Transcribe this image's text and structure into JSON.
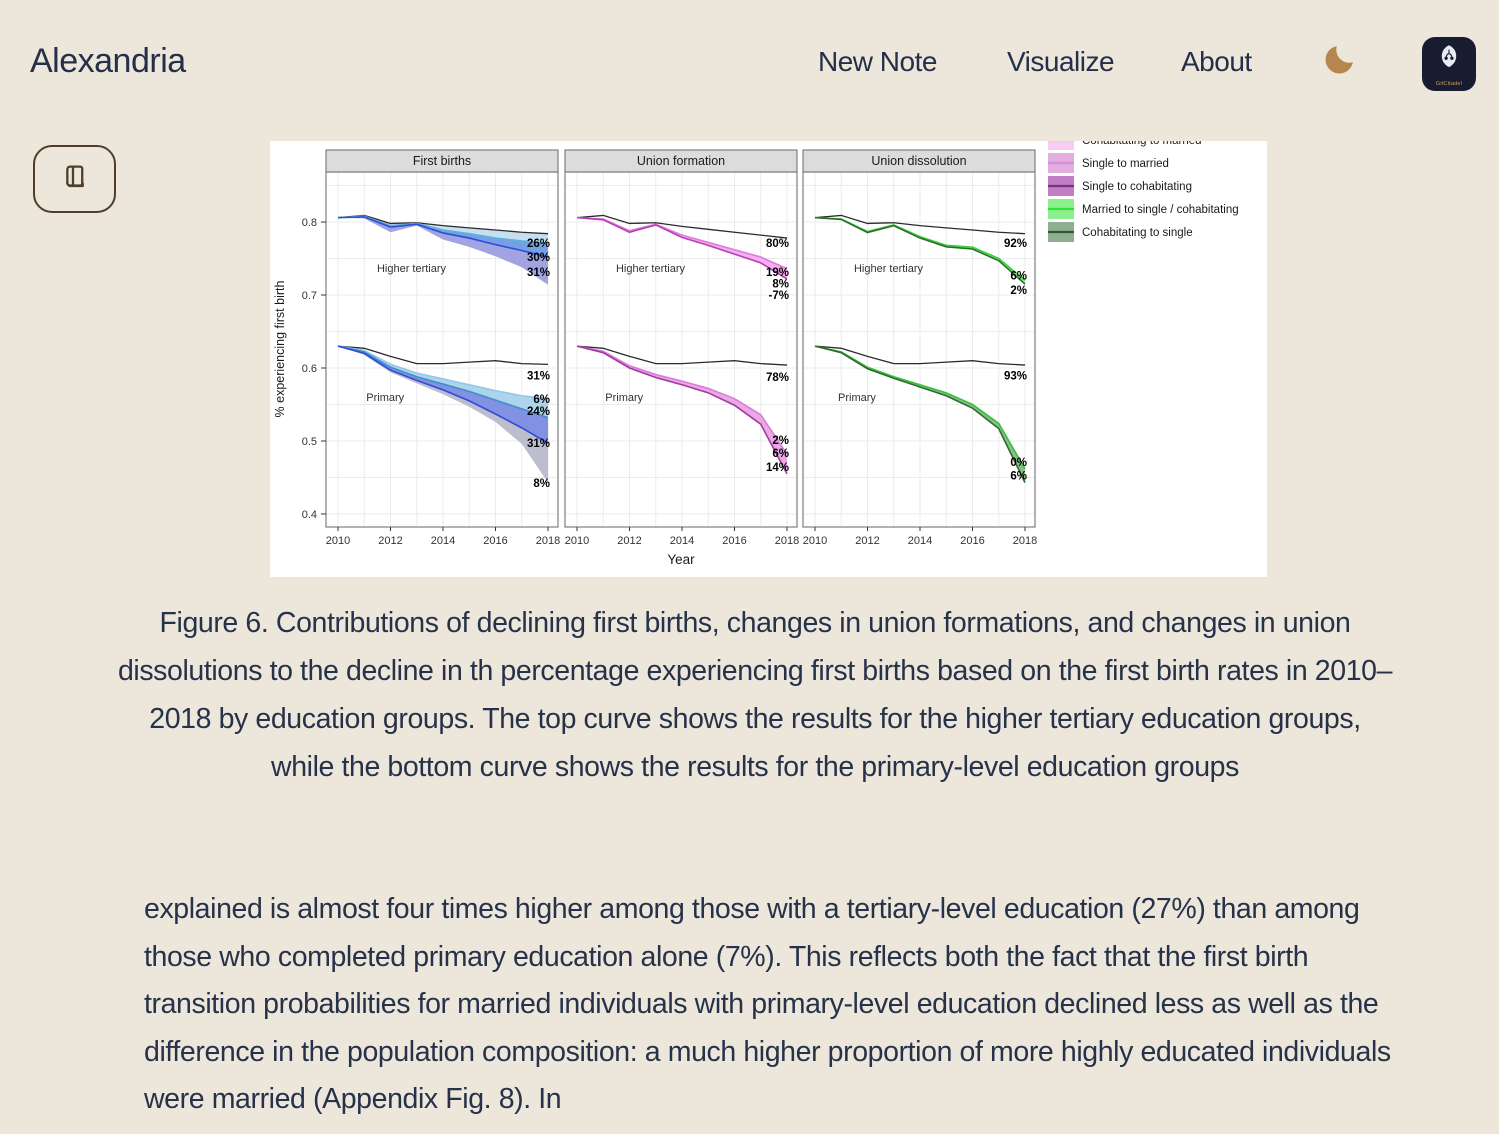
{
  "app": {
    "background": "#EDE6DA",
    "text_color": "#26324A",
    "accent_brown": "#4F3F2A",
    "moon_color": "#B5874E",
    "logo_bg": "#181C30",
    "logo_text": "GitCitadel"
  },
  "icons": {
    "theme_toggle": "moon-icon",
    "reader": "book-icon",
    "logo": "gitcitadel-logo"
  },
  "header": {
    "brand": "Alexandria",
    "nav": [
      {
        "label": "New Note"
      },
      {
        "label": "Visualize"
      },
      {
        "label": "About"
      }
    ]
  },
  "caption": "Figure 6. Contributions of declining first births, changes in union formations, and changes in union dissolutions to the decline in th percentage experiencing first births based on the first birth rates in 2010–2018 by education groups. The top curve shows the results for the higher tertiary education groups, while the bottom curve shows the results for the primary-level education groups",
  "body_text": "explained is almost four times higher among those with a tertiary-level education (27%) than among those who completed primary education alone (7%). This reflects both the fact that the first birth transition probabilities for married individuals with primary-level education declined less as well as the difference in the population composition: a much higher proportion of more highly educated individuals were married (Appendix Fig. 8). In",
  "chart_data": {
    "type": "line",
    "title": "",
    "xlabel": "Year",
    "ylabel": "% experiencing first birth",
    "x": [
      2010,
      2011,
      2012,
      2013,
      2014,
      2015,
      2016,
      2017,
      2018
    ],
    "x_ticks": [
      2010,
      2012,
      2014,
      2016,
      2018
    ],
    "y_ticks": [
      0.4,
      0.5,
      0.6,
      0.7,
      0.8
    ],
    "ylim": [
      0.38,
      0.87
    ],
    "grid": true,
    "legend_position": "right",
    "legend": [
      {
        "label": "Cohabitating to married",
        "fill": "#F8CCF4",
        "line": "#EE7AE6",
        "clipped": true
      },
      {
        "label": "Single to married",
        "fill": "#E2AEE2",
        "line": "#D490D8",
        "clipped": false
      },
      {
        "label": "Single to cohabitating",
        "fill": "#C07EC4",
        "line": "#7E2D84",
        "clipped": false
      },
      {
        "label": "Married to single / cohabitating",
        "fill": "#8CEE8C",
        "line": "#35E035",
        "clipped": false
      },
      {
        "label": "Cohabitating to single",
        "fill": "#8FAE8F",
        "line": "#2E5C2E",
        "clipped": false
      }
    ],
    "panels": [
      {
        "title": "First births",
        "groups": [
          {
            "name": "Higher tertiary",
            "name_at": [
              2012.8,
              0.737
            ],
            "black": [
              0.806,
              0.809,
              0.798,
              0.799,
              0.795,
              0.792,
              0.789,
              0.786,
              0.784
            ],
            "layers": [
              {
                "values": [
                  0.806,
                  0.808,
                  0.795,
                  0.798,
                  0.789,
                  0.784,
                  0.778,
                  0.774,
                  0.771
                ],
                "fill": "#C3DDF0",
                "line": "#5FB0DC"
              },
              {
                "values": [
                  0.806,
                  0.807,
                  0.793,
                  0.797,
                  0.785,
                  0.778,
                  0.769,
                  0.761,
                  0.752
                ],
                "fill": "#6E9BE4",
                "line": "#2F4BD8"
              },
              {
                "values": [
                  0.806,
                  0.805,
                  0.786,
                  0.795,
                  0.776,
                  0.766,
                  0.753,
                  0.738,
                  0.714
                ],
                "fill": "#9C9FDE",
                "line": null
              }
            ],
            "main": 1,
            "annotations": [
              {
                "text": "26%",
                "y": 0.771
              },
              {
                "text": "30%",
                "y": 0.752
              },
              {
                "text": "31%",
                "y": 0.7315
              }
            ]
          },
          {
            "name": "Primary",
            "name_at": [
              2011.8,
              0.56
            ],
            "black": [
              0.63,
              0.627,
              0.616,
              0.606,
              0.606,
              0.608,
              0.61,
              0.606,
              0.605
            ],
            "layers": [
              {
                "values": [
                  0.63,
                  0.624,
                  0.605,
                  0.593,
                  0.585,
                  0.577,
                  0.569,
                  0.562,
                  0.558
                ],
                "fill": null,
                "line": "#8FC8E8"
              },
              {
                "values": [
                  0.63,
                  0.622,
                  0.601,
                  0.588,
                  0.578,
                  0.568,
                  0.556,
                  0.544,
                  0.532
                ],
                "fill": "#A9D2EA",
                "line": "#3E8FCB"
              },
              {
                "values": [
                  0.63,
                  0.62,
                  0.597,
                  0.583,
                  0.57,
                  0.555,
                  0.537,
                  0.518,
                  0.497
                ],
                "fill": "#7C8BE0",
                "line": "#2F4BD8"
              },
              {
                "values": [
                  0.63,
                  0.618,
                  0.594,
                  0.579,
                  0.564,
                  0.547,
                  0.526,
                  0.496,
                  0.443
                ],
                "fill": "#B9B9CE",
                "line": null
              }
            ],
            "main": 2,
            "annotations": [
              {
                "text": "31%",
                "y": 0.59
              },
              {
                "text": "6%",
                "y": 0.5575
              },
              {
                "text": "24%",
                "y": 0.541
              },
              {
                "text": "31%",
                "y": 0.497
              },
              {
                "text": "8%",
                "y": 0.4425
              }
            ]
          }
        ]
      },
      {
        "title": "Union formation",
        "groups": [
          {
            "name": "Higher tertiary",
            "name_at": [
              2012.8,
              0.737
            ],
            "black": [
              0.806,
              0.809,
              0.798,
              0.799,
              0.794,
              0.79,
              0.786,
              0.782,
              0.778
            ],
            "layers": [
              {
                "values": [
                  0.806,
                  0.804,
                  0.788,
                  0.797,
                  0.782,
                  0.772,
                  0.762,
                  0.752,
                  0.736
                ],
                "fill": null,
                "line": "#E079DC"
              },
              {
                "values": [
                  0.806,
                  0.803,
                  0.786,
                  0.796,
                  0.779,
                  0.768,
                  0.756,
                  0.744,
                  0.722
                ],
                "fill": "#F2AEEC",
                "line": "#B83FB8"
              }
            ],
            "main": 1,
            "annotations": [
              {
                "text": "80%",
                "y": 0.771
              },
              {
                "text": "19%",
                "y": 0.7315
              },
              {
                "text": "8%",
                "y": 0.7155
              },
              {
                "text": "-7%",
                "y": 0.7
              }
            ]
          },
          {
            "name": "Primary",
            "name_at": [
              2011.8,
              0.56
            ],
            "black": [
              0.63,
              0.627,
              0.616,
              0.606,
              0.606,
              0.608,
              0.61,
              0.606,
              0.604
            ],
            "layers": [
              {
                "values": [
                  0.63,
                  0.623,
                  0.603,
                  0.591,
                  0.582,
                  0.572,
                  0.558,
                  0.536,
                  0.482
                ],
                "fill": null,
                "line": "#DB7BDB"
              },
              {
                "values": [
                  0.63,
                  0.621,
                  0.6,
                  0.587,
                  0.577,
                  0.566,
                  0.549,
                  0.523,
                  0.455
                ],
                "fill": "#E9A4E4",
                "line": "#A23AA2"
              }
            ],
            "main": 1,
            "annotations": [
              {
                "text": "78%",
                "y": 0.588
              },
              {
                "text": "2%",
                "y": 0.5014
              },
              {
                "text": "6%",
                "y": 0.4836
              },
              {
                "text": "14%",
                "y": 0.4644
              }
            ]
          }
        ]
      },
      {
        "title": "Union dissolution",
        "groups": [
          {
            "name": "Higher tertiary",
            "name_at": [
              2012.8,
              0.737
            ],
            "black": [
              0.806,
              0.809,
              0.798,
              0.799,
              0.795,
              0.792,
              0.789,
              0.786,
              0.784
            ],
            "layers": [
              {
                "values": [
                  0.806,
                  0.804,
                  0.787,
                  0.796,
                  0.78,
                  0.768,
                  0.7655,
                  0.75,
                  0.72
                ],
                "fill": null,
                "line": "#35D435"
              },
              {
                "values": [
                  0.806,
                  0.8035,
                  0.7855,
                  0.795,
                  0.778,
                  0.766,
                  0.763,
                  0.747,
                  0.715
                ],
                "fill": "#9FE89F",
                "line": "#2F6B2F"
              }
            ],
            "main": 0,
            "annotations": [
              {
                "text": "92%",
                "y": 0.771
              },
              {
                "text": "6%",
                "y": 0.727
              },
              {
                "text": "2%",
                "y": 0.707
              }
            ]
          },
          {
            "name": "Primary",
            "name_at": [
              2011.6,
              0.56
            ],
            "black": [
              0.63,
              0.627,
              0.616,
              0.606,
              0.606,
              0.608,
              0.61,
              0.606,
              0.604
            ],
            "layers": [
              {
                "values": [
                  0.63,
                  0.622,
                  0.601,
                  0.588,
                  0.577,
                  0.566,
                  0.55,
                  0.524,
                  0.462
                ],
                "fill": null,
                "line": "#35C435"
              },
              {
                "values": [
                  0.63,
                  0.621,
                  0.599,
                  0.586,
                  0.574,
                  0.562,
                  0.545,
                  0.517,
                  0.443
                ],
                "fill": "#86B886",
                "line": "#2F6B2F"
              }
            ],
            "main": 0,
            "annotations": [
              {
                "text": "93%",
                "y": 0.59
              },
              {
                "text": "0%",
                "y": 0.471
              },
              {
                "text": "6%",
                "y": 0.453
              }
            ]
          }
        ]
      }
    ]
  }
}
